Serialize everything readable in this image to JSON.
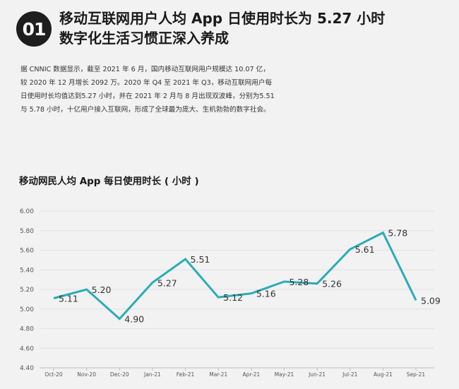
{
  "badge": "01",
  "headline": {
    "line1": "移动互联网用户人均 App 日使用时长为 5.27 小时",
    "line2": "数字化生活习惯正深入养成"
  },
  "intro": "据 CNNIC 数据显示，截至 2021 年 6 月，国内移动互联网用户规模达 10.07 亿，较 2020 年 12 月增长 2092 万。2020 年 Q4 至 2021 年 Q3，移动互联网用户每日使用时长均值达到5.27 小时，并在 2021 年 2 月与 8 月出现双波峰，分别为5.51 与 5.78 小时，十亿用户接入互联网，形成了全球最为庞大、生机勃勃的数字社会。",
  "colors": {
    "line": "#2aacb8",
    "grid": "#dcdcdc",
    "axis": "#bdbdbd"
  },
  "chart_data": {
    "type": "line",
    "title": "移动网民人均 App 每日使用时长 ( 小时 )",
    "categories": [
      "Oct-20",
      "Nov-20",
      "Dec-20",
      "Jan-21",
      "Feb-21",
      "Mar-21",
      "Apr-21",
      "May-21",
      "Jun-21",
      "Jul-21",
      "Aug-21",
      "Sep-21"
    ],
    "values": [
      5.11,
      5.2,
      4.9,
      5.27,
      5.51,
      5.12,
      5.16,
      5.28,
      5.26,
      5.61,
      5.78,
      5.09
    ],
    "value_labels": [
      "5.11",
      "5.20",
      "4.90",
      "5.27",
      "5.51",
      "5.12",
      "5.16",
      "5.28",
      "5.26",
      "5.61",
      "5.78",
      "5.09"
    ],
    "yticks": [
      "4.40",
      "4.60",
      "4.80",
      "5.00",
      "5.20",
      "5.40",
      "5.60",
      "5.80",
      "6.00"
    ],
    "ylim": [
      4.4,
      6.0
    ],
    "grid": true
  }
}
